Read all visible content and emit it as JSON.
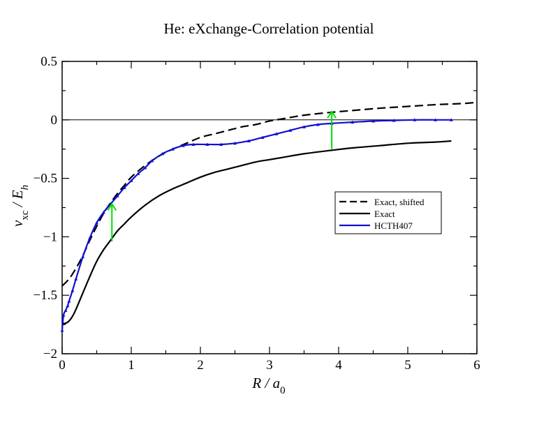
{
  "chart_data": {
    "type": "line",
    "title": "He: eXchange-Correlation potential",
    "xlabel": "R / a0",
    "ylabel": "vxc / Eh",
    "xlim": [
      0,
      6
    ],
    "ylim": [
      -2,
      0.5
    ],
    "x_ticks": [
      "0",
      "1",
      "2",
      "3",
      "4",
      "5",
      "6"
    ],
    "y_ticks": [
      "0.5",
      "0",
      "−0.5",
      "−1",
      "−1.5",
      "−2"
    ],
    "grid": false,
    "legend_position": "right",
    "reference_line_y": 0,
    "series": [
      {
        "name": "Exact, shifted",
        "color": "#000000",
        "dash": "dashed",
        "x": [
          0,
          0.1,
          0.2,
          0.3,
          0.4,
          0.5,
          0.6,
          0.7,
          0.8,
          0.9,
          1.0,
          1.2,
          1.4,
          1.6,
          1.8,
          2.0,
          2.2,
          2.4,
          2.6,
          2.8,
          3.0,
          3.2,
          3.5,
          3.9,
          4.2,
          4.6,
          5.0,
          5.4,
          5.8,
          6.0
        ],
        "y": [
          -1.42,
          -1.36,
          -1.27,
          -1.16,
          -1.03,
          -0.91,
          -0.8,
          -0.71,
          -0.63,
          -0.56,
          -0.49,
          -0.39,
          -0.31,
          -0.25,
          -0.2,
          -0.15,
          -0.12,
          -0.09,
          -0.06,
          -0.04,
          -0.01,
          0.01,
          0.04,
          0.065,
          0.08,
          0.1,
          0.115,
          0.13,
          0.14,
          0.15
        ]
      },
      {
        "name": "Exact",
        "color": "#000000",
        "dash": "solid",
        "x": [
          0,
          0.05,
          0.1,
          0.15,
          0.2,
          0.3,
          0.4,
          0.5,
          0.6,
          0.7,
          0.8,
          0.9,
          1.0,
          1.2,
          1.4,
          1.6,
          1.8,
          2.0,
          2.2,
          2.4,
          2.6,
          2.8,
          3.0,
          3.2,
          3.5,
          3.9,
          4.2,
          4.6,
          5.0,
          5.4,
          5.63
        ],
        "y": [
          -1.74,
          -1.74,
          -1.72,
          -1.68,
          -1.62,
          -1.48,
          -1.34,
          -1.21,
          -1.11,
          -1.03,
          -0.95,
          -0.89,
          -0.83,
          -0.73,
          -0.65,
          -0.59,
          -0.54,
          -0.49,
          -0.45,
          -0.42,
          -0.39,
          -0.36,
          -0.34,
          -0.32,
          -0.29,
          -0.26,
          -0.24,
          -0.22,
          -0.2,
          -0.19,
          -0.18
        ]
      },
      {
        "name": "HCTH407",
        "color": "#1010d0",
        "dash": "solid",
        "x": [
          0,
          0.02,
          0.05,
          0.08,
          0.1,
          0.15,
          0.2,
          0.3,
          0.4,
          0.5,
          0.6,
          0.7,
          0.8,
          0.9,
          1.0,
          1.1,
          1.2,
          1.3,
          1.45,
          1.6,
          1.75,
          1.9,
          2.1,
          2.3,
          2.5,
          2.7,
          2.9,
          3.1,
          3.3,
          3.5,
          3.7,
          3.9,
          4.2,
          4.5,
          4.8,
          5.1,
          5.4,
          5.63
        ],
        "y": [
          -1.8,
          -1.67,
          -1.63,
          -1.59,
          -1.55,
          -1.46,
          -1.36,
          -1.17,
          -1.01,
          -0.88,
          -0.79,
          -0.72,
          -0.65,
          -0.58,
          -0.52,
          -0.46,
          -0.41,
          -0.35,
          -0.29,
          -0.25,
          -0.22,
          -0.21,
          -0.21,
          -0.21,
          -0.2,
          -0.18,
          -0.15,
          -0.12,
          -0.09,
          -0.06,
          -0.04,
          -0.03,
          -0.02,
          -0.01,
          -0.005,
          0.0,
          0.0,
          0.0
        ]
      }
    ],
    "annotations": [
      {
        "type": "arrow",
        "color": "#00e000",
        "x": 0.72,
        "y_from": -1.04,
        "y_to": -0.72
      },
      {
        "type": "arrow",
        "color": "#00e000",
        "x": 3.9,
        "y_from": -0.25,
        "y_to": 0.07
      }
    ]
  }
}
